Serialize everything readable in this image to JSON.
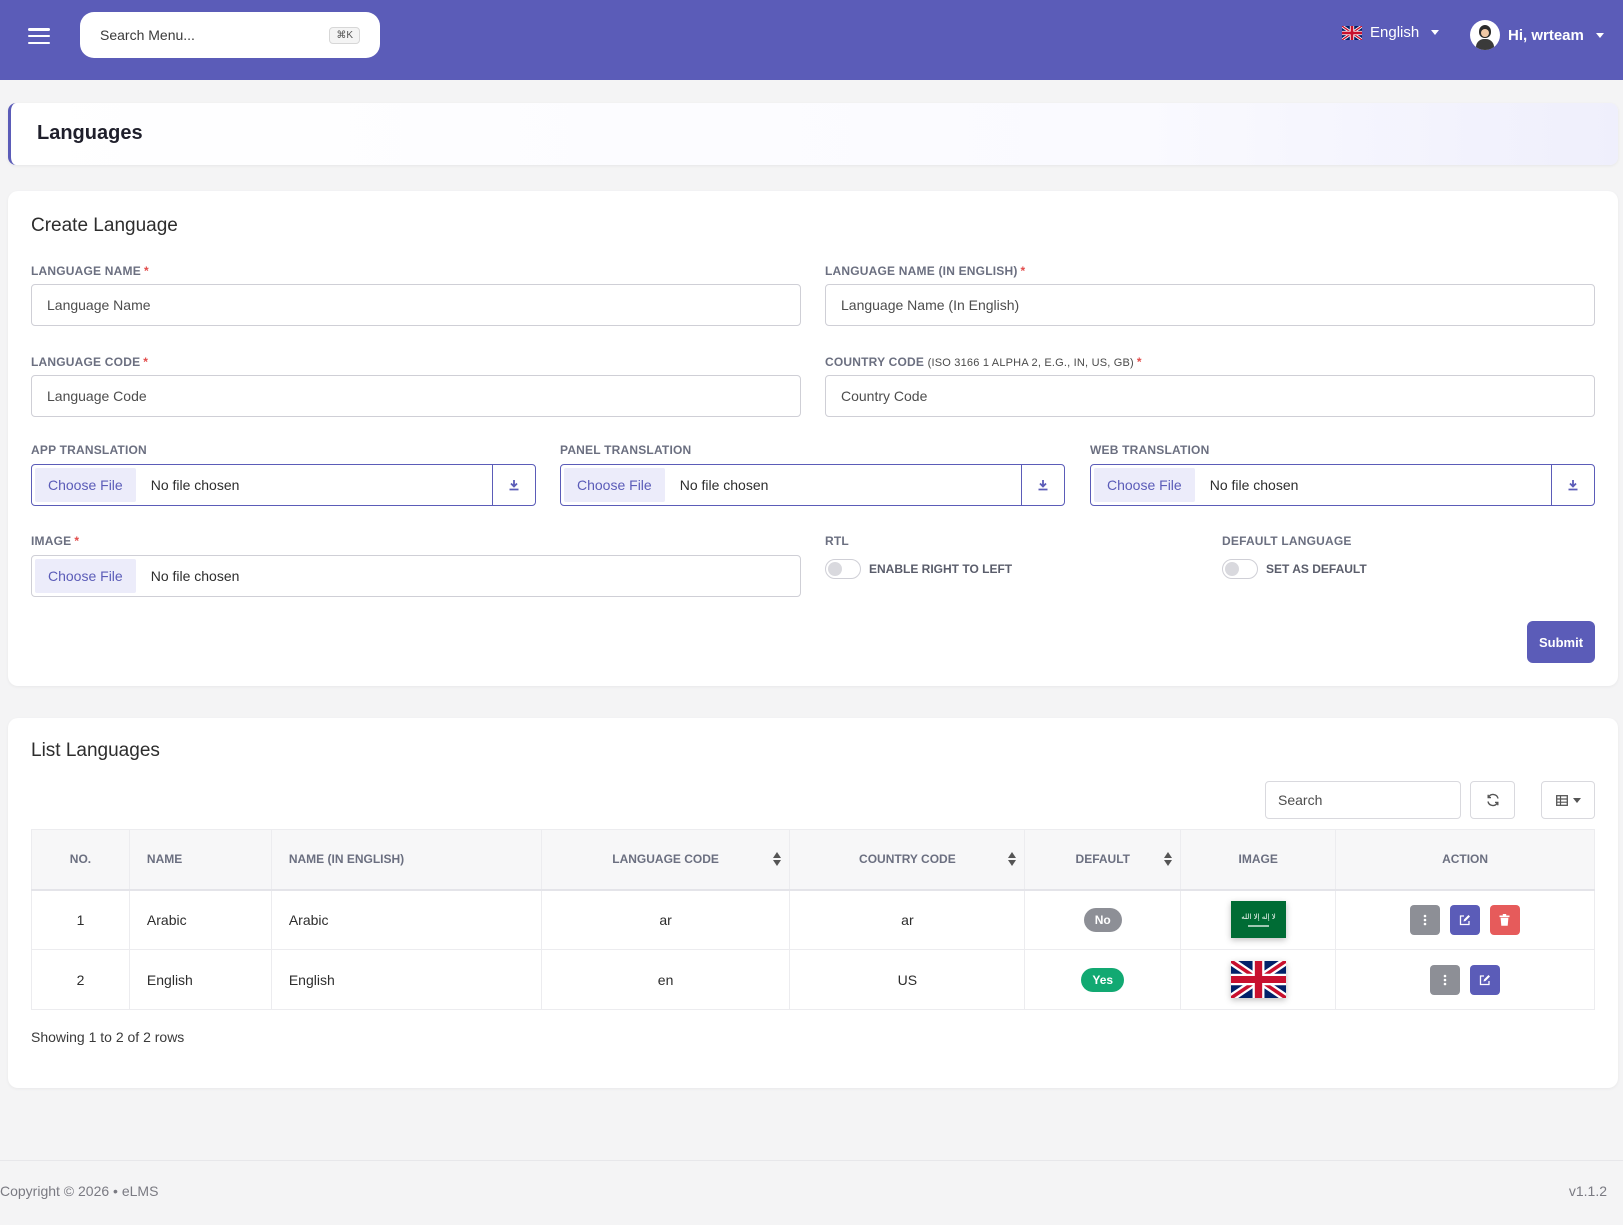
{
  "header": {
    "search_placeholder": "Search Menu...",
    "shortcut": "⌘K",
    "language": "English",
    "user_greeting": "Hi, wrteam"
  },
  "page": {
    "title": "Languages"
  },
  "create": {
    "title": "Create Language",
    "language_name_label": "LANGUAGE NAME",
    "language_name_placeholder": "Language Name",
    "language_name_en_label": "LANGUAGE NAME (IN ENGLISH)",
    "language_name_en_placeholder": "Language Name (In English)",
    "language_code_label": "LANGUAGE CODE",
    "language_code_placeholder": "Language Code",
    "country_code_label": "COUNTRY CODE",
    "country_code_hint": "(ISO 3166 1 ALPHA 2, E.G., IN, US, GB)",
    "country_code_placeholder": "Country Code",
    "app_translation_label": "APP TRANSLATION",
    "panel_translation_label": "PANEL TRANSLATION",
    "web_translation_label": "WEB TRANSLATION",
    "image_label": "IMAGE",
    "choose_file": "Choose File",
    "no_file": "No file chosen",
    "rtl_label": "RTL",
    "rtl_toggle_label": "ENABLE RIGHT TO LEFT",
    "default_label": "DEFAULT LANGUAGE",
    "default_toggle_label": "SET AS DEFAULT",
    "required_mark": "*",
    "submit": "Submit"
  },
  "list": {
    "title": "List Languages",
    "search_placeholder": "Search",
    "columns": [
      "NO.",
      "NAME",
      "NAME (IN ENGLISH)",
      "LANGUAGE CODE",
      "COUNTRY CODE",
      "DEFAULT",
      "IMAGE",
      "ACTION"
    ],
    "rows": [
      {
        "no": "1",
        "name": "Arabic",
        "name_en": "Arabic",
        "language_code": "ar",
        "country_code": "ar",
        "default": "No",
        "flag": "saudi-arabia-flag",
        "calligraphy": "لا إله إلا الله"
      },
      {
        "no": "2",
        "name": "English",
        "name_en": "English",
        "language_code": "en",
        "country_code": "US",
        "default": "Yes",
        "flag": "united-kingdom-flag"
      }
    ],
    "showing": "Showing 1 to 2 of 2 rows"
  },
  "footer": {
    "copyright": "Copyright © 2026  •  eLMS",
    "version": "v1.1.2"
  },
  "colors": {
    "primary": "#5b5cb8",
    "danger": "#e65b5b",
    "success": "#12a972",
    "muted_badge": "#8d8f96"
  }
}
